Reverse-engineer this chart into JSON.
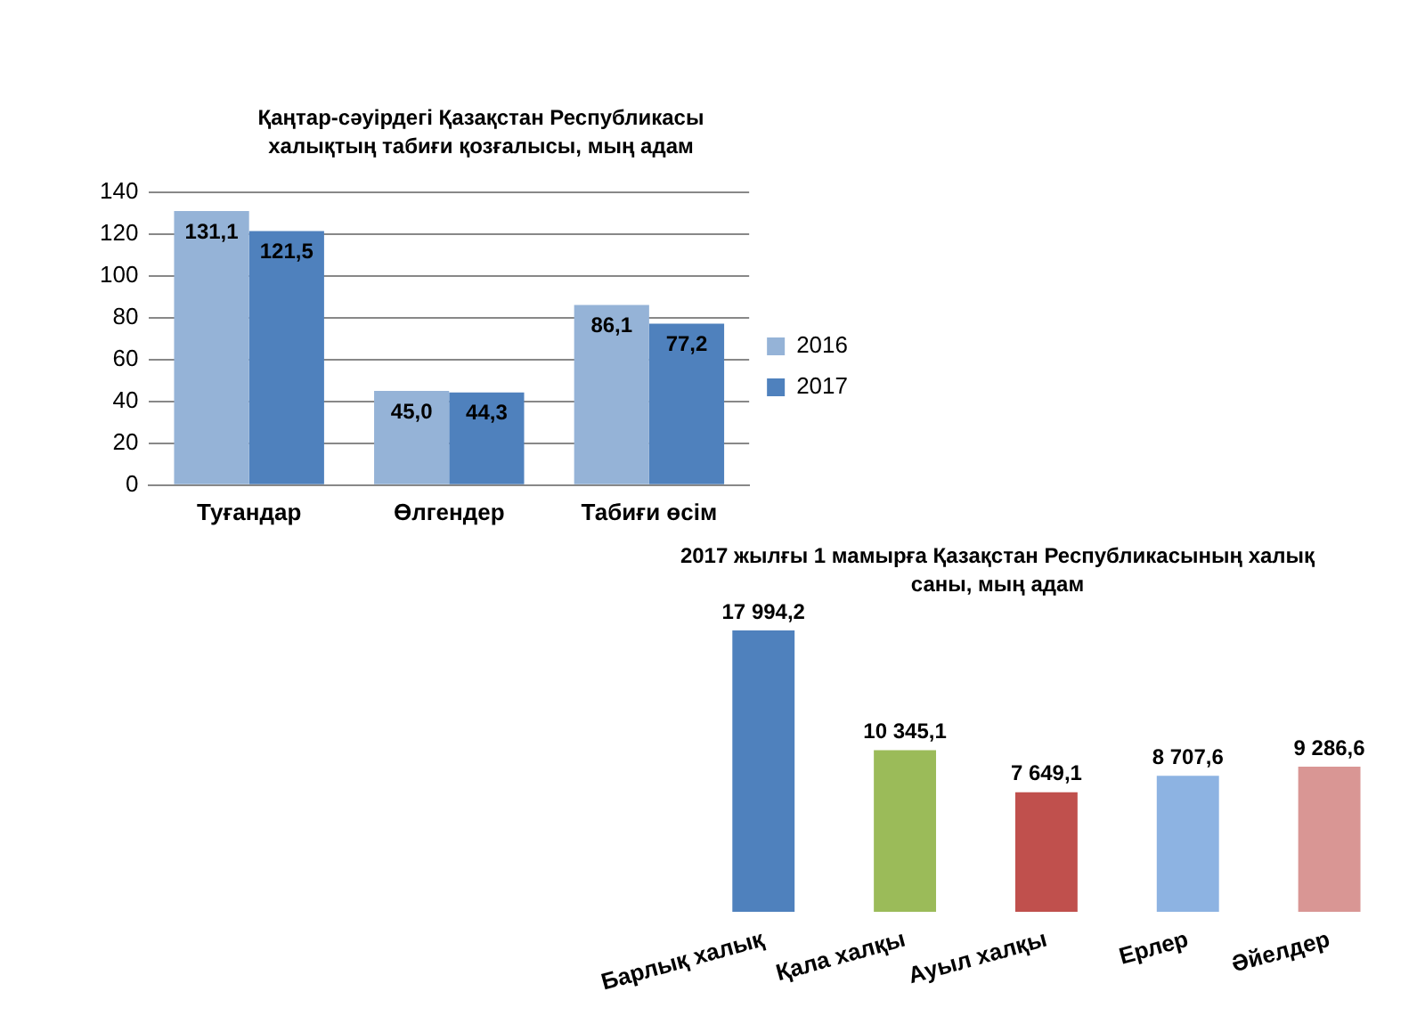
{
  "chart_data": [
    {
      "type": "bar",
      "title": "Қаңтар-сәуірдегі Қазақстан Республикасы халықтың табиғи қозғалысы, мың адам",
      "categories": [
        "Туғандар",
        "Өлгендер",
        "Табиғи өсім"
      ],
      "series": [
        {
          "name": "2016",
          "color": "#95b3d7",
          "values": [
            131.1,
            45.0,
            86.1
          ],
          "value_labels": [
            "131,1",
            "45,0",
            "86,1"
          ]
        },
        {
          "name": "2017",
          "color": "#4f81bd",
          "values": [
            121.5,
            44.3,
            77.2
          ],
          "value_labels": [
            "121,5",
            "44,3",
            "77,2"
          ]
        }
      ],
      "ylim": [
        0,
        140
      ],
      "yticks": [
        0,
        20,
        40,
        60,
        80,
        100,
        120,
        140
      ],
      "grid": "y",
      "legend": "right"
    },
    {
      "type": "bar",
      "title": "2017 жылғы 1 мамырға Қазақстан Республикасының халық саны, мың адам",
      "categories": [
        "Барлық халық",
        "Қала халқы",
        "Ауыл халқы",
        "Ерлер",
        "Әйелдер"
      ],
      "values": [
        17994.2,
        10345.1,
        7649.1,
        8707.6,
        9286.6
      ],
      "colors": [
        "#4f81bd",
        "#9bbb59",
        "#c0504d",
        "#8db3e2",
        "#d99694"
      ],
      "value_labels": [
        "17 994,2",
        "10 345,1",
        "7 649,1",
        "8 707,6",
        "9 286,6"
      ]
    }
  ]
}
